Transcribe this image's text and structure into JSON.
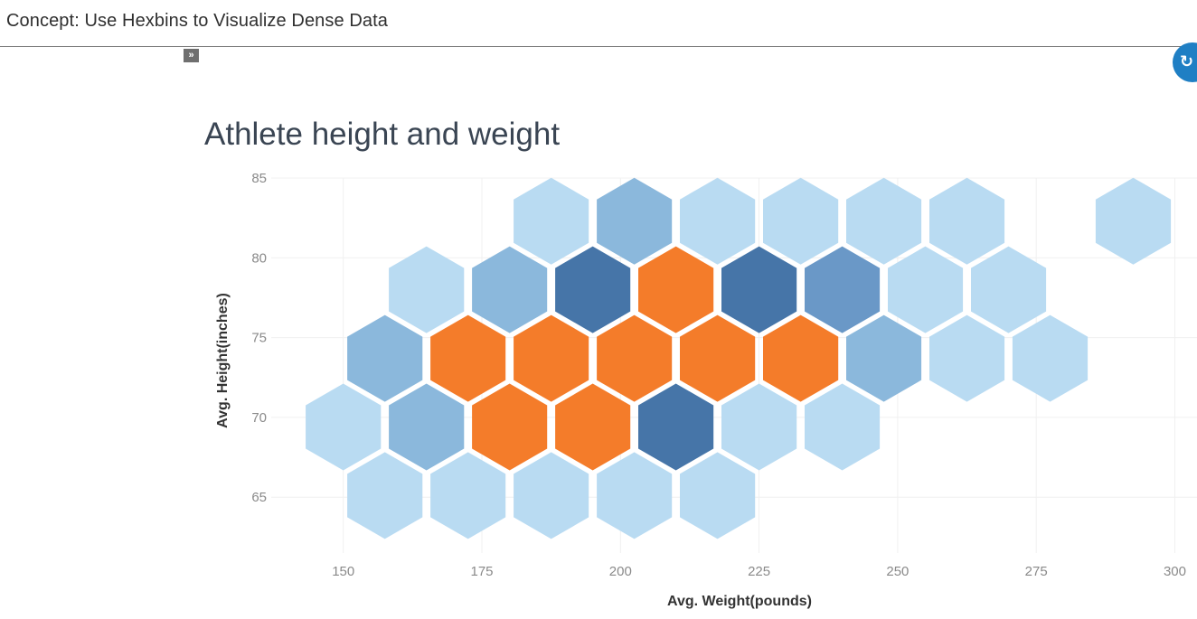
{
  "header": {
    "title": "Concept: Use Hexbins to Visualize Dense Data",
    "expand_label": "»",
    "reset_icon": "refresh-icon",
    "reset_glyph": "↻"
  },
  "colors": {
    "light": "#b9dbf2",
    "medium": "#8bb8dc",
    "medium_dark": "#6a98c7",
    "dark": "#4675a8",
    "highest": "#f47c2a",
    "accent": "#1f7fc4"
  },
  "chart_data": {
    "type": "scatter",
    "subtype": "hexbin",
    "title": "Athlete height and weight",
    "xlabel": "Avg. Weight(pounds)",
    "ylabel": "Avg. Height(inches)",
    "xlim": [
      137,
      304
    ],
    "ylim": [
      61.5,
      85
    ],
    "xticks": [
      150,
      175,
      200,
      225,
      250,
      275,
      300
    ],
    "yticks": [
      65,
      70,
      75,
      80,
      85
    ],
    "grid": true,
    "color_levels": [
      "light",
      "medium",
      "medium_dark",
      "dark",
      "highest"
    ],
    "bins": [
      {
        "x": 187.5,
        "y": 82.3,
        "level": "light"
      },
      {
        "x": 202.5,
        "y": 82.3,
        "level": "medium"
      },
      {
        "x": 217.5,
        "y": 82.3,
        "level": "light"
      },
      {
        "x": 232.5,
        "y": 82.3,
        "level": "light"
      },
      {
        "x": 247.5,
        "y": 82.3,
        "level": "light"
      },
      {
        "x": 262.5,
        "y": 82.3,
        "level": "light"
      },
      {
        "x": 292.5,
        "y": 82.3,
        "level": "light"
      },
      {
        "x": 165,
        "y": 78,
        "level": "light"
      },
      {
        "x": 180,
        "y": 78,
        "level": "medium"
      },
      {
        "x": 195,
        "y": 78,
        "level": "dark"
      },
      {
        "x": 210,
        "y": 78,
        "level": "highest"
      },
      {
        "x": 225,
        "y": 78,
        "level": "dark"
      },
      {
        "x": 240,
        "y": 78,
        "level": "medium_dark"
      },
      {
        "x": 255,
        "y": 78,
        "level": "light"
      },
      {
        "x": 270,
        "y": 78,
        "level": "light"
      },
      {
        "x": 157.5,
        "y": 73.7,
        "level": "medium"
      },
      {
        "x": 172.5,
        "y": 73.7,
        "level": "highest"
      },
      {
        "x": 187.5,
        "y": 73.7,
        "level": "highest"
      },
      {
        "x": 202.5,
        "y": 73.7,
        "level": "highest"
      },
      {
        "x": 217.5,
        "y": 73.7,
        "level": "highest"
      },
      {
        "x": 232.5,
        "y": 73.7,
        "level": "highest"
      },
      {
        "x": 247.5,
        "y": 73.7,
        "level": "medium"
      },
      {
        "x": 262.5,
        "y": 73.7,
        "level": "light"
      },
      {
        "x": 277.5,
        "y": 73.7,
        "level": "light"
      },
      {
        "x": 150,
        "y": 69.4,
        "level": "light"
      },
      {
        "x": 165,
        "y": 69.4,
        "level": "medium"
      },
      {
        "x": 180,
        "y": 69.4,
        "level": "highest"
      },
      {
        "x": 195,
        "y": 69.4,
        "level": "highest"
      },
      {
        "x": 210,
        "y": 69.4,
        "level": "dark"
      },
      {
        "x": 225,
        "y": 69.4,
        "level": "light"
      },
      {
        "x": 240,
        "y": 69.4,
        "level": "light"
      },
      {
        "x": 157.5,
        "y": 65.1,
        "level": "light"
      },
      {
        "x": 172.5,
        "y": 65.1,
        "level": "light"
      },
      {
        "x": 187.5,
        "y": 65.1,
        "level": "light"
      },
      {
        "x": 202.5,
        "y": 65.1,
        "level": "light"
      },
      {
        "x": 217.5,
        "y": 65.1,
        "level": "light"
      }
    ]
  }
}
